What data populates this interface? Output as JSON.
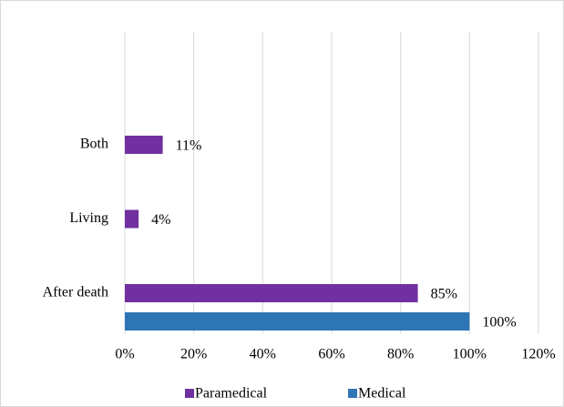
{
  "chart_data": {
    "type": "hbar",
    "categories": [
      "After death",
      "Living",
      "Both"
    ],
    "series": [
      {
        "name": "Paramedical",
        "color": "#7030a0",
        "values": [
          85,
          4,
          11
        ],
        "value_labels": [
          "85%",
          "4%",
          "11%"
        ]
      },
      {
        "name": "Medical",
        "color": "#2e75b6",
        "values": [
          100,
          null,
          null
        ],
        "value_labels": [
          "100%",
          null,
          null
        ]
      }
    ],
    "xlim": [
      0,
      120
    ],
    "xticks": [
      {
        "value": 0,
        "label": "0%"
      },
      {
        "value": 20,
        "label": "20%"
      },
      {
        "value": 40,
        "label": "40%"
      },
      {
        "value": 60,
        "label": "60%"
      },
      {
        "value": 80,
        "label": "80%"
      },
      {
        "value": 100,
        "label": "100%"
      },
      {
        "value": 120,
        "label": "120%"
      }
    ],
    "grid": true,
    "legend": "bottom"
  }
}
